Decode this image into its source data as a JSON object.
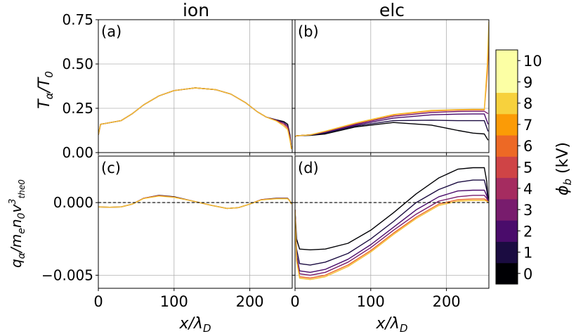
{
  "chart_data": {
    "type": "line",
    "column_titles": [
      "ion",
      "elc"
    ],
    "xlabel": "x/λ_D",
    "x_ticks": [
      0,
      100,
      200
    ],
    "xlim": [
      0,
      256
    ],
    "colorbar": {
      "label": "ϕ_b (kV)",
      "ticks": [
        "0",
        "1",
        "2",
        "3",
        "4",
        "5",
        "6",
        "7",
        "8",
        "9",
        "10"
      ],
      "colors": [
        "#000004",
        "#1b0c41",
        "#4a0c6b",
        "#781c6d",
        "#a52c60",
        "#cf4446",
        "#ed6925",
        "#fb9b06",
        "#f7d13d",
        "#fcffa4",
        "#fcffa4"
      ]
    },
    "panels": [
      {
        "id": "a",
        "label": "(a)",
        "row": 0,
        "col": 0,
        "ylabel": "T_α/T_0",
        "ylim": [
          0,
          0.75
        ],
        "y_ticks": [
          "0.00",
          "0.25",
          "0.50",
          "0.75"
        ],
        "y_tick_values": [
          0,
          0.25,
          0.5,
          0.75
        ],
        "zero_line": false,
        "series": [
          {
            "name": "0 kV",
            "color": "#000004",
            "x": [
              0,
              3,
              10,
              30,
              45,
              60,
              80,
              100,
              128,
              155,
              175,
              195,
              210,
              222,
              235,
              245,
              250,
              253,
              255
            ],
            "y": [
              0.1,
              0.16,
              0.165,
              0.18,
              0.22,
              0.27,
              0.32,
              0.35,
              0.365,
              0.355,
              0.33,
              0.28,
              0.23,
              0.2,
              0.185,
              0.175,
              0.16,
              0.1,
              0.02
            ]
          },
          {
            "name": "2 kV",
            "color": "#4a0c6b",
            "x": [
              0,
              3,
              10,
              30,
              45,
              60,
              80,
              100,
              128,
              155,
              175,
              195,
              210,
              222,
              235,
              245,
              250,
              253,
              255
            ],
            "y": [
              0.1,
              0.16,
              0.165,
              0.18,
              0.22,
              0.27,
              0.32,
              0.35,
              0.365,
              0.355,
              0.33,
              0.28,
              0.23,
              0.2,
              0.183,
              0.168,
              0.15,
              0.09,
              0.02
            ]
          },
          {
            "name": "5 kV",
            "color": "#cf4446",
            "x": [
              0,
              3,
              10,
              30,
              45,
              60,
              80,
              100,
              128,
              155,
              175,
              195,
              210,
              222,
              235,
              245,
              250,
              253,
              255
            ],
            "y": [
              0.1,
              0.16,
              0.165,
              0.18,
              0.22,
              0.27,
              0.32,
              0.35,
              0.365,
              0.355,
              0.33,
              0.28,
              0.23,
              0.2,
              0.18,
              0.16,
              0.14,
              0.08,
              0.02
            ]
          },
          {
            "name": "10 kV",
            "color": "#f5c02f",
            "x": [
              0,
              3,
              10,
              30,
              45,
              60,
              80,
              100,
              128,
              155,
              175,
              195,
              210,
              222,
              235,
              245,
              250,
              253,
              255
            ],
            "y": [
              0.1,
              0.16,
              0.165,
              0.18,
              0.22,
              0.27,
              0.32,
              0.35,
              0.365,
              0.355,
              0.33,
              0.28,
              0.23,
              0.2,
              0.178,
              0.15,
              0.13,
              0.07,
              0.02
            ]
          }
        ]
      },
      {
        "id": "b",
        "label": "(b)",
        "row": 0,
        "col": 1,
        "ylabel": "",
        "ylim": [
          0,
          0.75
        ],
        "y_ticks": [],
        "y_tick_values": [
          0,
          0.25,
          0.5,
          0.75
        ],
        "zero_line": false,
        "series": [
          {
            "name": "0 kV",
            "color": "#000004",
            "x": [
              0,
              2,
              20,
              40,
              80,
              130,
              180,
              215,
              235,
              250,
              255
            ],
            "y": [
              0.09,
              0.095,
              0.097,
              0.105,
              0.145,
              0.17,
              0.155,
              0.125,
              0.11,
              0.105,
              0.07
            ]
          },
          {
            "name": "1 kV",
            "color": "#1b0c41",
            "x": [
              0,
              2,
              20,
              40,
              80,
              130,
              180,
              215,
              235,
              250,
              255
            ],
            "y": [
              0.09,
              0.095,
              0.1,
              0.11,
              0.15,
              0.18,
              0.183,
              0.18,
              0.18,
              0.18,
              0.12
            ]
          },
          {
            "name": "2 kV",
            "color": "#4a0c6b",
            "x": [
              0,
              2,
              20,
              40,
              80,
              130,
              180,
              215,
              235,
              250,
              255
            ],
            "y": [
              0.09,
              0.095,
              0.1,
              0.115,
              0.155,
              0.195,
              0.213,
              0.217,
              0.218,
              0.218,
              0.16
            ]
          },
          {
            "name": "3 kV",
            "color": "#781c6d",
            "x": [
              0,
              2,
              20,
              40,
              80,
              130,
              180,
              215,
              235,
              250,
              255
            ],
            "y": [
              0.09,
              0.095,
              0.1,
              0.118,
              0.16,
              0.205,
              0.226,
              0.232,
              0.233,
              0.233,
              0.22
            ]
          },
          {
            "name": "6 kV",
            "color": "#ed6925",
            "x": [
              0,
              2,
              20,
              40,
              80,
              130,
              180,
              215,
              235,
              250,
              254,
              256
            ],
            "y": [
              0.09,
              0.095,
              0.1,
              0.12,
              0.165,
              0.212,
              0.235,
              0.24,
              0.241,
              0.241,
              0.45,
              0.62
            ]
          },
          {
            "name": "10 kV",
            "color": "#f5c02f",
            "x": [
              0,
              2,
              20,
              40,
              80,
              130,
              180,
              215,
              235,
              250,
              254,
              256
            ],
            "y": [
              0.09,
              0.095,
              0.1,
              0.121,
              0.167,
              0.215,
              0.238,
              0.243,
              0.244,
              0.244,
              0.5,
              0.74
            ]
          }
        ]
      },
      {
        "id": "c",
        "label": "(c)",
        "row": 1,
        "col": 0,
        "ylabel": "q_α/m_e n_0 v³_the0",
        "ylim": [
          -0.0059,
          0.0032
        ],
        "y_ticks": [
          "0.000",
          "−0.005"
        ],
        "y_tick_values": [
          0,
          -0.005
        ],
        "zero_line": true,
        "series": [
          {
            "name": "0 kV",
            "color": "#000004",
            "x": [
              0,
              15,
              30,
              45,
              60,
              80,
              100,
              125,
              150,
              170,
              185,
              200,
              215,
              235,
              250,
              253,
              255
            ],
            "y": [
              -0.0003,
              -0.00032,
              -0.0003,
              -0.0001,
              0.0003,
              0.0005,
              0.0004,
              0.0001,
              -0.0002,
              -0.0004,
              -0.00035,
              -0.0001,
              0.0002,
              0.0003,
              0.0003,
              0.0001,
              -0.0001
            ]
          },
          {
            "name": "5 kV",
            "color": "#cf4446",
            "x": [
              0,
              15,
              30,
              45,
              60,
              80,
              100,
              125,
              150,
              170,
              185,
              200,
              215,
              235,
              250,
              253,
              255
            ],
            "y": [
              -0.0003,
              -0.00032,
              -0.0003,
              -0.0001,
              0.0003,
              0.00048,
              0.00038,
              0.0001,
              -0.0002,
              -0.0004,
              -0.00035,
              -0.0001,
              0.0002,
              0.00028,
              0.00028,
              0.0001,
              -0.0001
            ]
          },
          {
            "name": "10 kV",
            "color": "#f5c02f",
            "x": [
              0,
              15,
              30,
              45,
              60,
              80,
              100,
              125,
              150,
              170,
              185,
              200,
              215,
              235,
              250,
              253,
              255
            ],
            "y": [
              -0.0003,
              -0.00032,
              -0.0003,
              -0.0001,
              0.00028,
              0.00045,
              0.00036,
              0.0001,
              -0.0002,
              -0.0004,
              -0.00035,
              -0.0001,
              0.00018,
              0.00026,
              0.00026,
              0.0001,
              -0.0001
            ]
          }
        ]
      },
      {
        "id": "d",
        "label": "(d)",
        "row": 1,
        "col": 1,
        "ylabel": "",
        "ylim": [
          -0.0059,
          0.0032
        ],
        "y_ticks": [],
        "y_tick_values": [
          0,
          -0.005
        ],
        "zero_line": true,
        "series": [
          {
            "name": "0 kV",
            "color": "#000004",
            "x": [
              0,
              2,
              6,
              20,
              40,
              70,
              100,
              130,
              160,
              190,
              215,
              235,
              250,
              253,
              255
            ],
            "y": [
              -0.0005,
              -0.0025,
              -0.0032,
              -0.00325,
              -0.0032,
              -0.0028,
              -0.0019,
              -0.0007,
              0.0006,
              0.0017,
              0.0023,
              0.0024,
              0.0024,
              0.0015,
              0.0003
            ]
          },
          {
            "name": "1 kV",
            "color": "#1b0c41",
            "x": [
              0,
              2,
              6,
              20,
              40,
              70,
              100,
              130,
              160,
              190,
              215,
              235,
              250,
              253,
              255
            ],
            "y": [
              -0.0005,
              -0.0032,
              -0.0042,
              -0.0043,
              -0.0041,
              -0.0035,
              -0.0025,
              -0.0013,
              0.0,
              0.0009,
              0.0014,
              0.00155,
              0.00155,
              0.0009,
              0.0002
            ]
          },
          {
            "name": "2 kV",
            "color": "#4a0c6b",
            "x": [
              0,
              2,
              6,
              20,
              40,
              70,
              100,
              130,
              160,
              190,
              215,
              235,
              250,
              253,
              255
            ],
            "y": [
              -0.0005,
              -0.0036,
              -0.0047,
              -0.0048,
              -0.0046,
              -0.0039,
              -0.0029,
              -0.0017,
              -0.0005,
              0.0004,
              0.0008,
              0.00085,
              0.00085,
              0.0005,
              0.0001
            ]
          },
          {
            "name": "3 kV",
            "color": "#781c6d",
            "x": [
              0,
              2,
              6,
              20,
              40,
              70,
              100,
              130,
              160,
              190,
              215,
              235,
              250,
              253,
              255
            ],
            "y": [
              -0.0005,
              -0.0038,
              -0.0049,
              -0.005,
              -0.0048,
              -0.0041,
              -0.0031,
              -0.0019,
              -0.0008,
              0.0001,
              0.0004,
              0.0005,
              0.0005,
              0.0003,
              0.0001
            ]
          },
          {
            "name": "6 kV",
            "color": "#ed6925",
            "x": [
              0,
              2,
              6,
              20,
              40,
              70,
              100,
              130,
              160,
              190,
              215,
              235,
              250,
              253,
              255
            ],
            "y": [
              -0.0005,
              -0.0039,
              -0.0051,
              -0.0052,
              -0.005,
              -0.0043,
              -0.0033,
              -0.0021,
              -0.001,
              -0.0001,
              0.0002,
              0.00025,
              0.00025,
              0.00015,
              0.0
            ]
          },
          {
            "name": "10 kV",
            "color": "#f5c02f",
            "x": [
              0,
              2,
              6,
              20,
              40,
              70,
              100,
              130,
              160,
              190,
              215,
              235,
              250,
              253,
              255
            ],
            "y": [
              -0.0005,
              -0.004,
              -0.0052,
              -0.0053,
              -0.0051,
              -0.0044,
              -0.0034,
              -0.0022,
              -0.0011,
              -0.0002,
              0.0001,
              0.00015,
              0.00015,
              0.0001,
              0.0
            ]
          }
        ]
      }
    ]
  }
}
